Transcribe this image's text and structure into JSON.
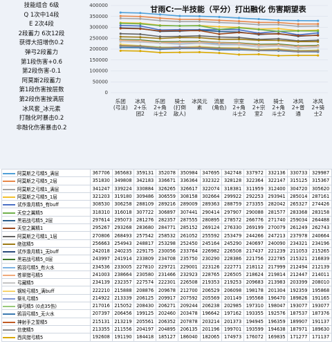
{
  "chart_data": {
    "type": "line",
    "title": "甘雨C:一半技能（平分）打出融化 伤害期望表",
    "notes": [
      "技能组合 6级",
      "Q 1次中14段",
      "E 2次4段",
      "2段蓄力 6次12段",
      "获得大招增伤0.2",
      "弹弓2段蓄力",
      "第1段伤害+0.6",
      "第2段伤害-0.1",
      "阿莫斯2段蓄力",
      "第1段伤害按层数",
      "第2段伤害按满层",
      "冰风套_冰元素",
      "打融化时暴击0.2",
      "非融化伤害暴击0.2"
    ],
    "categories": [
      "乐团(弓法)",
      "冰风2+乐团2",
      "乐团2+角斗士2",
      "骑士(打倒敌人)",
      "冰风元素",
      "流星(角色)",
      "宗室2+角斗士2",
      "冰风2+宗室2",
      "骑士2+角斗士2",
      "冰风2+普通",
      "冰风2+骑士2"
    ],
    "ylim": [
      0,
      400000
    ],
    "yticks": [
      0,
      50000,
      100000,
      150000,
      200000,
      250000,
      300000,
      350000,
      400000
    ],
    "series": [
      {
        "name": "阿莫斯之弓精5_满层",
        "color": "#4e9fd8",
        "values": [
          367706,
          365683,
          359131,
          352078,
          350984,
          347695,
          342748,
          337972,
          332136,
          330733,
          329987
        ]
      },
      {
        "name": "阿莫斯之弓精5_2层",
        "color": "#e8884a",
        "values": [
          351830,
          349808,
          342183,
          336671,
          336364,
          332322,
          328128,
          322364,
          322147,
          315125,
          315367
        ]
      },
      {
        "name": "阿莫斯之弓精1_满层",
        "color": "#a5a5a5",
        "values": [
          341247,
          339224,
          330884,
          326265,
          326617,
          322074,
          318381,
          311959,
          312400,
          304720,
          305620
        ]
      },
      {
        "name": "阿莫斯之弓精5_1层",
        "color": "#f2c12e",
        "values": [
          321203,
          319180,
          309486,
          306559,
          308158,
          302664,
          299922,
          292253,
          293941,
          285014,
          287161
        ]
      },
      {
        "name": "试作澹月精5_有buff",
        "color": "#4a6fc4",
        "values": [
          308530,
          306258,
          288109,
          289216,
          289009,
          289363,
          288759,
          273355,
          282042,
          265327,
          274426
        ]
      },
      {
        "name": "天空之翼精5",
        "color": "#6fb04a",
        "values": [
          318310,
          316018,
          307722,
          306897,
          307441,
          290414,
          297907,
          290088,
          281577,
          283368,
          283158
        ]
      },
      {
        "name": "黑岩战弓精5_2层",
        "color": "#2a5d8c",
        "values": [
          297614,
          295073,
          281276,
          282357,
          287555,
          280895,
          278572,
          266776,
          271740,
          259034,
          264488
        ]
      },
      {
        "name": "天空之翼精1",
        "color": "#9c4a1e",
        "values": [
          295267,
          293268,
          283680,
          284771,
          285152,
          269124,
          276330,
          269199,
          270079,
          261249,
          262743
        ]
      },
      {
        "name": "阿莫斯之弓精1_1层",
        "color": "#636363",
        "values": [
          270806,
          268493,
          257542,
          258532,
          261052,
          255592,
          253479,
          244266,
          247213,
          237978,
          240664
        ]
      },
      {
        "name": "绝弦精5",
        "color": "#9c7a14",
        "values": [
          256663,
          254943,
          248817,
          253298,
          252450,
          245164,
          245290,
          240697,
          240090,
          234321,
          234196
        ]
      },
      {
        "name": "试作澹月精1_无buff",
        "color": "#28487a",
        "values": [
          242018,
          240235,
          229175,
          230056,
          233764,
          226982,
          226508,
          217437,
          221239,
          211053,
          215265
        ]
      },
      {
        "name": "黑岩战弓精5_0层",
        "color": "#3e7a2a",
        "values": [
          243997,
          241914,
          233809,
          234708,
          235750,
          230290,
          228386,
          221756,
          222785,
          215321,
          216839
        ]
      },
      {
        "name": "鸦羽弓精5_有火水",
        "color": "#7bb3e3",
        "values": [
          234536,
          233005,
          227810,
          229721,
          229001,
          223126,
          222771,
          218112,
          217999,
          212494,
          212139
        ]
      },
      {
        "name": "苍翠猎弓精5",
        "color": "#f0a97a",
        "values": [
          241003,
          238664,
          230580,
          231466,
          232923,
          228765,
          226505,
          218624,
          219814,
          212447,
          214011
        ]
      },
      {
        "name": "弓藏精5",
        "color": "#c4c4c4",
        "values": [
          234139,
          232357,
          227574,
          222301,
          226508,
          219353,
          219253,
          209683,
          213983,
          203399,
          208010
        ]
      },
      {
        "name": "钢轮弓精5_满buff",
        "color": "#f7d36b",
        "values": [
          222210,
          215888,
          208876,
          209678,
          212700,
          206529,
          206098,
          198178,
          201304,
          192359,
          195868
        ]
      },
      {
        "name": "祭礼弓精5",
        "color": "#7f96d4",
        "values": [
          214922,
          213339,
          206125,
          209917,
          207592,
          205569,
          201149,
          195568,
          196470,
          189826,
          191165
        ]
      },
      {
        "name": "弹弓精5 (0点35伤)",
        "color": "#97c97a",
        "values": [
          217016,
          215052,
          208430,
          206271,
          209244,
          206238,
          202985,
          197310,
          198047,
          193077,
          193077
        ]
      },
      {
        "name": "鸦羽弓精5_无火水",
        "color": "#3a78b0",
        "values": [
          207397,
          206456,
          199125,
          202460,
          203478,
          196642,
          197162,
          193355,
          192576,
          187537,
          187376
        ]
      },
      {
        "name": "神射手之誓精5",
        "color": "#c05a24",
        "values": [
          215131,
          213219,
          205561,
          206352,
          207878,
          203214,
          201373,
          194945,
          196359,
          189907,
          191137
        ]
      },
      {
        "name": "信使精5",
        "color": "#8a8a8a",
        "values": [
          213355,
          211556,
          204197,
          204895,
          206135,
          201196,
          199701,
          193599,
          194638,
          187971,
          189630
        ]
      },
      {
        "name": "西风猎弓精5",
        "color": "#d9a800",
        "values": [
          192608,
          191190,
          184418,
          185127,
          186040,
          182065,
          174973,
          176072,
          169835,
          171277,
          171137
        ]
      }
    ]
  }
}
